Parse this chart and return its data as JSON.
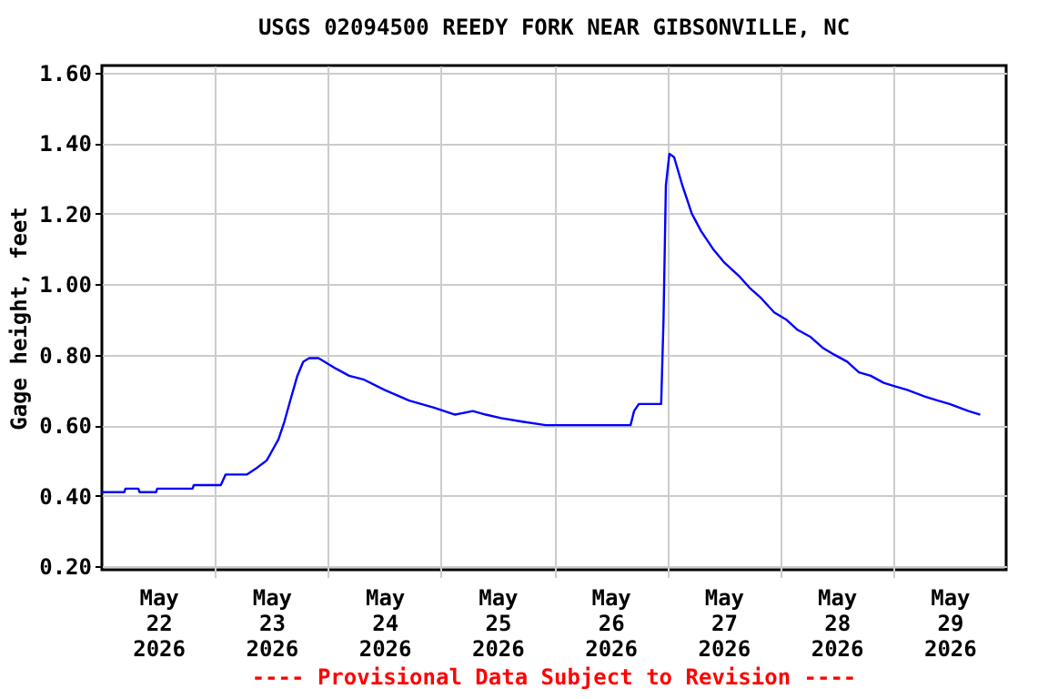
{
  "chart_data": {
    "type": "line",
    "title": "USGS 02094500 REEDY FORK NEAR GIBSONVILLE, NC",
    "ylabel": "Gage height, feet",
    "annotations": [
      "---- Provisional Data Subject to Revision ----"
    ],
    "x": [
      "2026-05-22T00:00",
      "2026-05-22T04:45",
      "2026-05-22T05:00",
      "2026-05-22T07:45",
      "2026-05-22T08:00",
      "2026-05-22T11:30",
      "2026-05-22T11:45",
      "2026-05-22T19:15",
      "2026-05-22T19:30",
      "2026-05-23T01:15",
      "2026-05-23T02:15",
      "2026-05-23T06:45",
      "2026-05-23T09:00",
      "2026-05-23T11:00",
      "2026-05-23T12:15",
      "2026-05-23T13:30",
      "2026-05-23T14:45",
      "2026-05-23T16:00",
      "2026-05-23T17:30",
      "2026-05-23T18:45",
      "2026-05-23T20:00",
      "2026-05-23T22:00",
      "2026-05-24T01:45",
      "2026-05-24T04:30",
      "2026-05-24T07:30",
      "2026-05-24T12:00",
      "2026-05-24T17:15",
      "2026-05-24T22:30",
      "2026-05-25T03:00",
      "2026-05-25T06:45",
      "2026-05-25T09:30",
      "2026-05-25T12:45",
      "2026-05-25T17:15",
      "2026-05-25T22:15",
      "2026-05-26T16:15",
      "2026-05-26T17:00",
      "2026-05-26T18:00",
      "2026-05-26T22:45",
      "2026-05-26T23:15",
      "2026-05-26T23:45",
      "2026-05-27T00:30",
      "2026-05-27T01:30",
      "2026-05-27T03:15",
      "2026-05-27T05:15",
      "2026-05-27T07:15",
      "2026-05-27T09:45",
      "2026-05-27T12:15",
      "2026-05-27T15:30",
      "2026-05-27T17:30",
      "2026-05-27T20:00",
      "2026-05-27T22:45",
      "2026-05-28T01:15",
      "2026-05-28T03:45",
      "2026-05-28T06:30",
      "2026-05-28T09:00",
      "2026-05-28T11:30",
      "2026-05-28T14:15",
      "2026-05-28T16:45",
      "2026-05-28T19:15",
      "2026-05-28T22:00",
      "2026-05-29T00:30",
      "2026-05-29T03:00",
      "2026-05-29T07:00",
      "2026-05-29T09:30",
      "2026-05-29T12:00",
      "2026-05-29T16:00",
      "2026-05-29T18:30"
    ],
    "series": [
      {
        "color": "#0000ff",
        "values": [
          0.41,
          0.41,
          0.42,
          0.42,
          0.41,
          0.41,
          0.42,
          0.42,
          0.43,
          0.43,
          0.46,
          0.46,
          0.48,
          0.5,
          0.53,
          0.56,
          0.61,
          0.67,
          0.74,
          0.78,
          0.79,
          0.79,
          0.76,
          0.74,
          0.73,
          0.7,
          0.67,
          0.65,
          0.63,
          0.64,
          0.63,
          0.62,
          0.61,
          0.6,
          0.6,
          0.64,
          0.66,
          0.66,
          0.9,
          1.28,
          1.37,
          1.36,
          1.28,
          1.2,
          1.15,
          1.1,
          1.06,
          1.02,
          0.99,
          0.96,
          0.92,
          0.9,
          0.87,
          0.85,
          0.82,
          0.8,
          0.78,
          0.75,
          0.74,
          0.72,
          0.71,
          0.7,
          0.68,
          0.67,
          0.66,
          0.64,
          0.63
        ]
      }
    ],
    "xlim": [
      "2026-05-22T00:00",
      "2026-05-30T00:00"
    ],
    "xticks": [
      {
        "value": "2026-05-22T12:00",
        "label": "May\n22\n2026"
      },
      {
        "value": "2026-05-23T00:00",
        "label": null
      },
      {
        "value": "2026-05-23T12:00",
        "label": "May\n23\n2026"
      },
      {
        "value": "2026-05-24T00:00",
        "label": null
      },
      {
        "value": "2026-05-24T12:00",
        "label": "May\n24\n2026"
      },
      {
        "value": "2026-05-25T00:00",
        "label": null
      },
      {
        "value": "2026-05-25T12:00",
        "label": "May\n25\n2026"
      },
      {
        "value": "2026-05-26T00:00",
        "label": null
      },
      {
        "value": "2026-05-26T12:00",
        "label": "May\n26\n2026"
      },
      {
        "value": "2026-05-27T00:00",
        "label": null
      },
      {
        "value": "2026-05-27T12:00",
        "label": "May\n27\n2026"
      },
      {
        "value": "2026-05-28T00:00",
        "label": null
      },
      {
        "value": "2026-05-28T12:00",
        "label": "May\n28\n2026"
      },
      {
        "value": "2026-05-29T00:00",
        "label": null
      },
      {
        "value": "2026-05-29T12:00",
        "label": "May\n29\n2026"
      }
    ],
    "ylim": [
      0.19,
      1.62
    ],
    "yticks": [
      {
        "value": 0.2,
        "label": "0.20"
      },
      {
        "value": 0.4,
        "label": "0.40"
      },
      {
        "value": 0.6,
        "label": "0.60"
      },
      {
        "value": 0.8,
        "label": "0.80"
      },
      {
        "value": 1.0,
        "label": "1.00"
      },
      {
        "value": 1.2,
        "label": "1.20"
      },
      {
        "value": 1.4,
        "label": "1.40"
      },
      {
        "value": 1.6,
        "label": "1.60"
      }
    ],
    "grid": true,
    "line_style": "solid",
    "marker": "none"
  }
}
